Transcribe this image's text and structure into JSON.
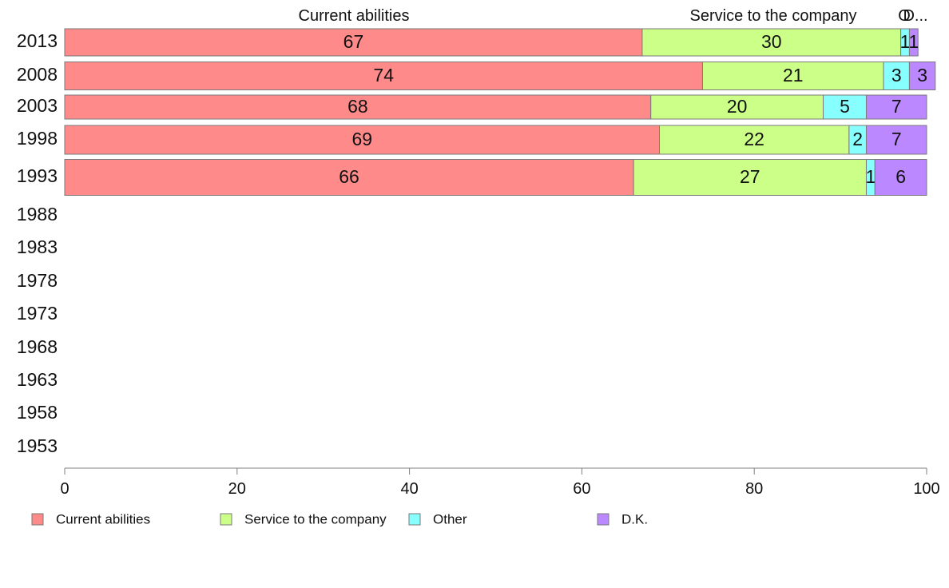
{
  "chart_data": {
    "type": "bar",
    "orientation": "horizontal",
    "stacked": true,
    "categories": [
      "2013",
      "2008",
      "2003",
      "1998",
      "1993",
      "1988",
      "1983",
      "1978",
      "1973",
      "1968",
      "1963",
      "1958",
      "1953"
    ],
    "series": [
      {
        "name": "Current abilities",
        "color": "#FF8A8A",
        "values": [
          67,
          74,
          68,
          69,
          66,
          null,
          null,
          null,
          null,
          null,
          null,
          null,
          null
        ]
      },
      {
        "name": "Service to the company",
        "color": "#CCFF88",
        "values": [
          30,
          21,
          20,
          22,
          27,
          null,
          null,
          null,
          null,
          null,
          null,
          null,
          null
        ]
      },
      {
        "name": "Other",
        "color": "#88FFFF",
        "values": [
          1,
          3,
          5,
          2,
          1,
          null,
          null,
          null,
          null,
          null,
          null,
          null,
          null
        ]
      },
      {
        "name": "D.K.",
        "color": "#BB88FF",
        "values": [
          1,
          3,
          7,
          7,
          6,
          null,
          null,
          null,
          null,
          null,
          null,
          null,
          null
        ]
      }
    ],
    "top_labels": [
      "Current abilities",
      "Service to the company",
      "O",
      "D..."
    ],
    "xlim": [
      0,
      100
    ],
    "xticks": [
      0,
      20,
      40,
      60,
      80,
      100
    ],
    "grid": false,
    "legend_position": "bottom"
  }
}
